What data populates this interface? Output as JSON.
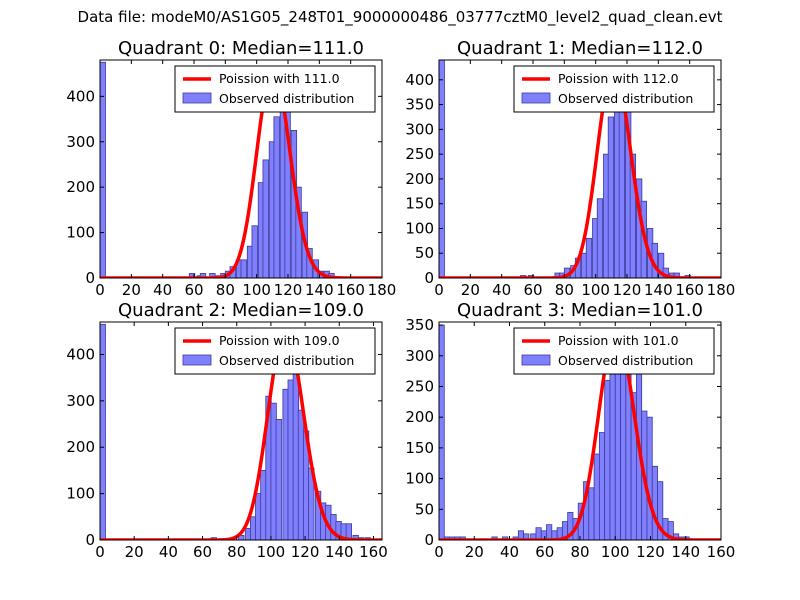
{
  "figure_title": "Data file: modeM0/AS1G05_248T01_9000000486_03777cztM0_level2_quad_clean.evt",
  "colors": {
    "bar_fill": "#8080ff",
    "bar_stroke": "#3a3a9a",
    "curve": "#ff0000",
    "axes": "#000000"
  },
  "chart_data": [
    {
      "type": "bar",
      "title": "Quadrant 0: Median=111.0",
      "xlim": [
        0,
        180
      ],
      "ylim": [
        0,
        480
      ],
      "xticks": [
        0,
        20,
        40,
        60,
        80,
        100,
        120,
        140,
        160,
        180
      ],
      "yticks": [
        0,
        100,
        200,
        300,
        400
      ],
      "bin_width": 3.5,
      "legend": {
        "curve": "Poission with 111.0",
        "bars": "Observed distribution"
      },
      "bars": [
        {
          "x": 0,
          "y": 475
        },
        {
          "x": 57,
          "y": 10
        },
        {
          "x": 62,
          "y": 5
        },
        {
          "x": 64,
          "y": 10
        },
        {
          "x": 70,
          "y": 10
        },
        {
          "x": 74,
          "y": 5
        },
        {
          "x": 77,
          "y": 10
        },
        {
          "x": 80,
          "y": 15
        },
        {
          "x": 83,
          "y": 25
        },
        {
          "x": 87,
          "y": 40
        },
        {
          "x": 90,
          "y": 40
        },
        {
          "x": 94,
          "y": 70
        },
        {
          "x": 97,
          "y": 115
        },
        {
          "x": 101,
          "y": 210
        },
        {
          "x": 104,
          "y": 260
        },
        {
          "x": 108,
          "y": 300
        },
        {
          "x": 111,
          "y": 355
        },
        {
          "x": 115,
          "y": 440
        },
        {
          "x": 118,
          "y": 420
        },
        {
          "x": 122,
          "y": 325
        },
        {
          "x": 125,
          "y": 200
        },
        {
          "x": 129,
          "y": 145
        },
        {
          "x": 132,
          "y": 65
        },
        {
          "x": 136,
          "y": 40
        },
        {
          "x": 139,
          "y": 15
        },
        {
          "x": 143,
          "y": 15
        },
        {
          "x": 146,
          "y": 10
        }
      ],
      "poisson_lambda": 111.0,
      "poisson_peak": 460
    },
    {
      "type": "bar",
      "title": "Quadrant 1: Median=112.0",
      "xlim": [
        0,
        180
      ],
      "ylim": [
        0,
        440
      ],
      "xticks": [
        0,
        20,
        40,
        60,
        80,
        100,
        120,
        140,
        160,
        180
      ],
      "yticks": [
        0,
        50,
        100,
        150,
        200,
        250,
        300,
        350,
        400
      ],
      "bin_width": 3.5,
      "legend": {
        "curve": "Poission with 112.0",
        "bars": "Observed distribution"
      },
      "bars": [
        {
          "x": 0,
          "y": 440
        },
        {
          "x": 52,
          "y": 5
        },
        {
          "x": 57,
          "y": 5
        },
        {
          "x": 74,
          "y": 10
        },
        {
          "x": 77,
          "y": 10
        },
        {
          "x": 80,
          "y": 20
        },
        {
          "x": 84,
          "y": 25
        },
        {
          "x": 87,
          "y": 40
        },
        {
          "x": 91,
          "y": 50
        },
        {
          "x": 94,
          "y": 80
        },
        {
          "x": 98,
          "y": 120
        },
        {
          "x": 101,
          "y": 160
        },
        {
          "x": 105,
          "y": 250
        },
        {
          "x": 108,
          "y": 325
        },
        {
          "x": 112,
          "y": 385
        },
        {
          "x": 115,
          "y": 380
        },
        {
          "x": 119,
          "y": 360
        },
        {
          "x": 122,
          "y": 250
        },
        {
          "x": 126,
          "y": 200
        },
        {
          "x": 129,
          "y": 155
        },
        {
          "x": 133,
          "y": 100
        },
        {
          "x": 136,
          "y": 70
        },
        {
          "x": 140,
          "y": 50
        },
        {
          "x": 143,
          "y": 20
        },
        {
          "x": 147,
          "y": 10
        },
        {
          "x": 150,
          "y": 10
        },
        {
          "x": 157,
          "y": 5
        }
      ],
      "poisson_lambda": 112.0,
      "poisson_peak": 425
    },
    {
      "type": "bar",
      "title": "Quadrant 2: Median=109.0",
      "xlim": [
        0,
        165
      ],
      "ylim": [
        0,
        470
      ],
      "xticks": [
        0,
        20,
        40,
        60,
        80,
        100,
        120,
        140,
        160
      ],
      "yticks": [
        0,
        100,
        200,
        300,
        400
      ],
      "bin_width": 3.2,
      "legend": {
        "curve": "Poission with 109.0",
        "bars": "Observed distribution"
      },
      "bars": [
        {
          "x": 0,
          "y": 465
        },
        {
          "x": 65,
          "y": 5
        },
        {
          "x": 81,
          "y": 10
        },
        {
          "x": 85,
          "y": 25
        },
        {
          "x": 88,
          "y": 50
        },
        {
          "x": 91,
          "y": 100
        },
        {
          "x": 94,
          "y": 150
        },
        {
          "x": 97,
          "y": 310
        },
        {
          "x": 100,
          "y": 295
        },
        {
          "x": 103,
          "y": 260
        },
        {
          "x": 107,
          "y": 325
        },
        {
          "x": 110,
          "y": 345
        },
        {
          "x": 113,
          "y": 365
        },
        {
          "x": 116,
          "y": 280
        },
        {
          "x": 119,
          "y": 235
        },
        {
          "x": 122,
          "y": 155
        },
        {
          "x": 126,
          "y": 105
        },
        {
          "x": 129,
          "y": 80
        },
        {
          "x": 132,
          "y": 75
        },
        {
          "x": 135,
          "y": 55
        },
        {
          "x": 138,
          "y": 40
        },
        {
          "x": 141,
          "y": 35
        },
        {
          "x": 144,
          "y": 35
        },
        {
          "x": 148,
          "y": 10
        },
        {
          "x": 151,
          "y": 5
        },
        {
          "x": 155,
          "y": 5
        }
      ],
      "poisson_lambda": 109.0,
      "poisson_peak": 450
    },
    {
      "type": "bar",
      "title": "Quadrant 3: Median=101.0",
      "xlim": [
        0,
        160
      ],
      "ylim": [
        0,
        355
      ],
      "xticks": [
        0,
        20,
        40,
        60,
        80,
        100,
        120,
        140,
        160
      ],
      "yticks": [
        0,
        50,
        100,
        150,
        200,
        250,
        300,
        350
      ],
      "bin_width": 3.0,
      "legend": {
        "curve": "Poission with 101.0",
        "bars": "Observed distribution"
      },
      "bars": [
        {
          "x": 0,
          "y": 350
        },
        {
          "x": 3,
          "y": 5
        },
        {
          "x": 6,
          "y": 5
        },
        {
          "x": 9,
          "y": 5
        },
        {
          "x": 12,
          "y": 5
        },
        {
          "x": 30,
          "y": 5
        },
        {
          "x": 36,
          "y": 5
        },
        {
          "x": 42,
          "y": 5
        },
        {
          "x": 45,
          "y": 15
        },
        {
          "x": 48,
          "y": 10
        },
        {
          "x": 52,
          "y": 10
        },
        {
          "x": 55,
          "y": 20
        },
        {
          "x": 58,
          "y": 15
        },
        {
          "x": 61,
          "y": 25
        },
        {
          "x": 64,
          "y": 15
        },
        {
          "x": 67,
          "y": 20
        },
        {
          "x": 70,
          "y": 30
        },
        {
          "x": 73,
          "y": 45
        },
        {
          "x": 76,
          "y": 35
        },
        {
          "x": 79,
          "y": 60
        },
        {
          "x": 82,
          "y": 95
        },
        {
          "x": 85,
          "y": 85
        },
        {
          "x": 88,
          "y": 140
        },
        {
          "x": 91,
          "y": 175
        },
        {
          "x": 94,
          "y": 260
        },
        {
          "x": 97,
          "y": 300
        },
        {
          "x": 100,
          "y": 300
        },
        {
          "x": 103,
          "y": 340
        },
        {
          "x": 106,
          "y": 275
        },
        {
          "x": 109,
          "y": 240
        },
        {
          "x": 112,
          "y": 300
        },
        {
          "x": 115,
          "y": 210
        },
        {
          "x": 118,
          "y": 200
        },
        {
          "x": 121,
          "y": 120
        },
        {
          "x": 124,
          "y": 95
        },
        {
          "x": 127,
          "y": 35
        },
        {
          "x": 130,
          "y": 30
        },
        {
          "x": 133,
          "y": 10
        },
        {
          "x": 136,
          "y": 5
        },
        {
          "x": 139,
          "y": 5
        }
      ],
      "poisson_lambda": 101.0,
      "poisson_peak": 340
    }
  ]
}
